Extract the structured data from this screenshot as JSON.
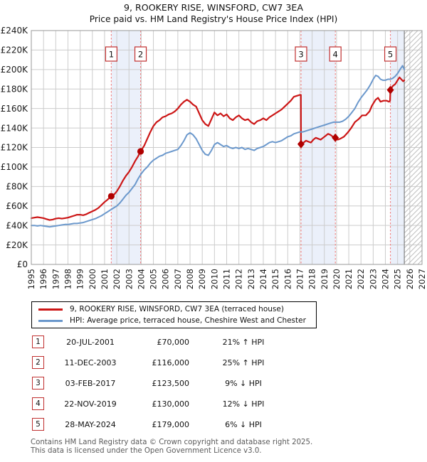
{
  "title": "9, ROOKERY RISE, WINSFORD, CW7 3EA",
  "subtitle": "Price paid vs. HM Land Registry's House Price Index (HPI)",
  "legend": {
    "items": [
      {
        "label": "9, ROOKERY RISE, WINSFORD, CW7 3EA (terraced house)",
        "color": "#cc1616"
      },
      {
        "label": "HPI: Average price, terraced house, Cheshire West and Chester",
        "color": "#6b98cc"
      }
    ]
  },
  "footer": {
    "line1": "Contains HM Land Registry data © Crown copyright and database right 2025.",
    "line2": "This data is licensed under the Open Government Licence v3.0."
  },
  "chart_data": {
    "type": "line",
    "title": "9, ROOKERY RISE, WINSFORD, CW7 3EA",
    "subtitle": "Price paid vs. HM Land Registry's House Price Index (HPI)",
    "unit": "GBP thousands",
    "x_axis": {
      "min": 1995,
      "max": 2027,
      "tick_years": [
        1995,
        1996,
        1997,
        1998,
        1999,
        2000,
        2001,
        2002,
        2003,
        2004,
        2005,
        2006,
        2007,
        2008,
        2009,
        2010,
        2011,
        2012,
        2013,
        2014,
        2015,
        2016,
        2017,
        2018,
        2019,
        2020,
        2021,
        2022,
        2023,
        2024,
        2025,
        2026,
        2027
      ]
    },
    "y_axis": {
      "min": 0,
      "max": 240000,
      "tick_step": 20000,
      "tick_labels": [
        "£0",
        "£20K",
        "£40K",
        "£60K",
        "£80K",
        "£100K",
        "£120K",
        "£140K",
        "£160K",
        "£180K",
        "£200K",
        "£220K",
        "£240K"
      ]
    },
    "colors": {
      "property": "#cc1616",
      "hpi": "#6b98cc",
      "marker": "#b00000",
      "dashed": "#f08080",
      "band": "#ebf0fa",
      "grid": "#cccccc",
      "border": "#9a9a9a",
      "hatch": "#bfbfbf",
      "hatch_edge": "#808080"
    },
    "ownership_bands": [
      [
        2001.55,
        2003.95
      ],
      [
        2017.09,
        2019.9
      ],
      [
        2024.41,
        2025.55
      ]
    ],
    "future_hatch_region": [
      2025.55,
      2027
    ],
    "sales": [
      {
        "num": 1,
        "date": "20-JUL-2001",
        "price": "£70,000",
        "hpi": "21% ↑ HPI",
        "year": 2001.55,
        "value_k": 70,
        "marker": "circle"
      },
      {
        "num": 2,
        "date": "11-DEC-2003",
        "price": "£116,000",
        "hpi": "25% ↑ HPI",
        "year": 2003.95,
        "value_k": 116,
        "marker": "circle"
      },
      {
        "num": 3,
        "date": "03-FEB-2017",
        "price": "£123,500",
        "hpi": "9% ↓ HPI",
        "year": 2017.09,
        "value_k": 123.5,
        "marker": "diamond"
      },
      {
        "num": 4,
        "date": "22-NOV-2019",
        "price": "£130,000",
        "hpi": "12% ↓ HPI",
        "year": 2019.9,
        "value_k": 130,
        "marker": "diamond"
      },
      {
        "num": 5,
        "date": "28-MAY-2024",
        "price": "£179,000",
        "hpi": "6% ↓ HPI",
        "year": 2024.41,
        "value_k": 179,
        "marker": "diamond"
      }
    ],
    "series": [
      {
        "name": "9, ROOKERY RISE, WINSFORD, CW7 3EA (terraced house)",
        "color": "#cc1616",
        "points": [
          [
            1995.0,
            47.5
          ],
          [
            1995.25,
            48
          ],
          [
            1995.5,
            48.5
          ],
          [
            1995.75,
            48
          ],
          [
            1996.0,
            47.5
          ],
          [
            1996.25,
            46.5
          ],
          [
            1996.5,
            45.5
          ],
          [
            1996.75,
            46
          ],
          [
            1997.0,
            47
          ],
          [
            1997.25,
            47.5
          ],
          [
            1997.5,
            47
          ],
          [
            1997.75,
            47.5
          ],
          [
            1998.0,
            48
          ],
          [
            1998.25,
            49
          ],
          [
            1998.5,
            50
          ],
          [
            1998.75,
            51
          ],
          [
            1999.0,
            51
          ],
          [
            1999.25,
            50.5
          ],
          [
            1999.5,
            51.5
          ],
          [
            1999.75,
            53
          ],
          [
            2000.0,
            54.5
          ],
          [
            2000.25,
            56
          ],
          [
            2000.5,
            58
          ],
          [
            2000.75,
            61
          ],
          [
            2001.0,
            64
          ],
          [
            2001.25,
            66.5
          ],
          [
            2001.55,
            70
          ],
          [
            2001.8,
            72
          ],
          [
            2002.0,
            75
          ],
          [
            2002.25,
            80
          ],
          [
            2002.5,
            86
          ],
          [
            2002.75,
            91
          ],
          [
            2003.0,
            95
          ],
          [
            2003.25,
            100
          ],
          [
            2003.5,
            106
          ],
          [
            2003.75,
            111
          ],
          [
            2003.95,
            116
          ],
          [
            2004.25,
            122
          ],
          [
            2004.5,
            129
          ],
          [
            2004.75,
            136
          ],
          [
            2005.0,
            142
          ],
          [
            2005.25,
            146
          ],
          [
            2005.5,
            148
          ],
          [
            2005.75,
            151
          ],
          [
            2006.0,
            152
          ],
          [
            2006.25,
            154
          ],
          [
            2006.5,
            155
          ],
          [
            2006.75,
            157
          ],
          [
            2007.0,
            160
          ],
          [
            2007.25,
            164
          ],
          [
            2007.5,
            167
          ],
          [
            2007.75,
            169
          ],
          [
            2008.0,
            167
          ],
          [
            2008.25,
            164
          ],
          [
            2008.5,
            162
          ],
          [
            2008.75,
            155
          ],
          [
            2009.0,
            148
          ],
          [
            2009.25,
            144
          ],
          [
            2009.5,
            142
          ],
          [
            2009.75,
            149
          ],
          [
            2010.0,
            156
          ],
          [
            2010.25,
            153
          ],
          [
            2010.5,
            155
          ],
          [
            2010.75,
            152
          ],
          [
            2011.0,
            154
          ],
          [
            2011.25,
            150
          ],
          [
            2011.5,
            148
          ],
          [
            2011.75,
            151
          ],
          [
            2012.0,
            153
          ],
          [
            2012.25,
            150
          ],
          [
            2012.5,
            148
          ],
          [
            2012.75,
            149
          ],
          [
            2013.0,
            146
          ],
          [
            2013.25,
            144
          ],
          [
            2013.5,
            147
          ],
          [
            2013.75,
            148
          ],
          [
            2014.0,
            150
          ],
          [
            2014.25,
            148
          ],
          [
            2014.5,
            151
          ],
          [
            2014.75,
            153
          ],
          [
            2015.0,
            155
          ],
          [
            2015.25,
            157
          ],
          [
            2015.5,
            159
          ],
          [
            2015.75,
            162
          ],
          [
            2016.0,
            165
          ],
          [
            2016.25,
            168
          ],
          [
            2016.5,
            172
          ],
          [
            2016.75,
            173
          ],
          [
            2017.0,
            174
          ],
          [
            2017.08,
            174
          ],
          [
            2017.09,
            123.5
          ],
          [
            2017.3,
            125
          ],
          [
            2017.5,
            127
          ],
          [
            2017.7,
            126
          ],
          [
            2017.9,
            125
          ],
          [
            2018.1,
            128
          ],
          [
            2018.3,
            130
          ],
          [
            2018.5,
            129
          ],
          [
            2018.7,
            128
          ],
          [
            2018.9,
            130
          ],
          [
            2019.1,
            132
          ],
          [
            2019.3,
            134
          ],
          [
            2019.5,
            133
          ],
          [
            2019.7,
            131
          ],
          [
            2019.9,
            130
          ],
          [
            2020.1,
            128
          ],
          [
            2020.3,
            129
          ],
          [
            2020.6,
            131
          ],
          [
            2020.9,
            135
          ],
          [
            2021.2,
            140
          ],
          [
            2021.5,
            146
          ],
          [
            2021.8,
            149
          ],
          [
            2022.1,
            153
          ],
          [
            2022.4,
            153
          ],
          [
            2022.7,
            157
          ],
          [
            2022.9,
            163
          ],
          [
            2023.2,
            169
          ],
          [
            2023.4,
            171
          ],
          [
            2023.6,
            167
          ],
          [
            2023.85,
            168
          ],
          [
            2024.1,
            168
          ],
          [
            2024.3,
            167
          ],
          [
            2024.38,
            168
          ],
          [
            2024.41,
            179
          ],
          [
            2024.6,
            183
          ],
          [
            2024.8,
            185
          ],
          [
            2025.0,
            189
          ],
          [
            2025.15,
            192
          ],
          [
            2025.3,
            190
          ],
          [
            2025.45,
            188
          ],
          [
            2025.55,
            189
          ]
        ]
      },
      {
        "name": "HPI: Average price, terraced house, Cheshire West and Chester",
        "color": "#6b98cc",
        "points": [
          [
            1995.0,
            40
          ],
          [
            1995.25,
            40
          ],
          [
            1995.5,
            39.5
          ],
          [
            1995.75,
            40
          ],
          [
            1996.0,
            39.5
          ],
          [
            1996.25,
            39
          ],
          [
            1996.5,
            38.5
          ],
          [
            1996.75,
            39
          ],
          [
            1997.0,
            39.5
          ],
          [
            1997.25,
            40
          ],
          [
            1997.5,
            40.5
          ],
          [
            1997.75,
            41
          ],
          [
            1998.0,
            41
          ],
          [
            1998.25,
            41.5
          ],
          [
            1998.5,
            42
          ],
          [
            1998.75,
            42
          ],
          [
            1999.0,
            42.5
          ],
          [
            1999.25,
            43
          ],
          [
            1999.5,
            44
          ],
          [
            1999.75,
            45
          ],
          [
            2000.0,
            46
          ],
          [
            2000.25,
            47
          ],
          [
            2000.5,
            48.5
          ],
          [
            2000.75,
            50
          ],
          [
            2001.0,
            52
          ],
          [
            2001.25,
            54
          ],
          [
            2001.5,
            56
          ],
          [
            2001.75,
            58
          ],
          [
            2002.0,
            60
          ],
          [
            2002.25,
            63
          ],
          [
            2002.5,
            67
          ],
          [
            2002.75,
            71
          ],
          [
            2003.0,
            74
          ],
          [
            2003.25,
            78
          ],
          [
            2003.5,
            82
          ],
          [
            2003.75,
            88
          ],
          [
            2004.0,
            93
          ],
          [
            2004.25,
            97
          ],
          [
            2004.5,
            100
          ],
          [
            2004.75,
            104
          ],
          [
            2005.0,
            107
          ],
          [
            2005.25,
            109
          ],
          [
            2005.5,
            111
          ],
          [
            2005.75,
            112
          ],
          [
            2006.0,
            114
          ],
          [
            2006.25,
            115
          ],
          [
            2006.5,
            116
          ],
          [
            2006.75,
            117
          ],
          [
            2007.0,
            118
          ],
          [
            2007.25,
            122
          ],
          [
            2007.5,
            127
          ],
          [
            2007.75,
            133
          ],
          [
            2008.0,
            135
          ],
          [
            2008.25,
            133
          ],
          [
            2008.5,
            129
          ],
          [
            2008.75,
            123
          ],
          [
            2009.0,
            117
          ],
          [
            2009.25,
            113
          ],
          [
            2009.5,
            112
          ],
          [
            2009.75,
            117
          ],
          [
            2010.0,
            123
          ],
          [
            2010.25,
            125
          ],
          [
            2010.5,
            123
          ],
          [
            2010.75,
            121
          ],
          [
            2011.0,
            122
          ],
          [
            2011.25,
            120
          ],
          [
            2011.5,
            119
          ],
          [
            2011.75,
            120
          ],
          [
            2012.0,
            119
          ],
          [
            2012.25,
            120
          ],
          [
            2012.5,
            118
          ],
          [
            2012.75,
            119
          ],
          [
            2013.0,
            118
          ],
          [
            2013.25,
            117
          ],
          [
            2013.5,
            119
          ],
          [
            2013.75,
            120
          ],
          [
            2014.0,
            121
          ],
          [
            2014.25,
            123
          ],
          [
            2014.5,
            125
          ],
          [
            2014.75,
            126
          ],
          [
            2015.0,
            125
          ],
          [
            2015.25,
            126
          ],
          [
            2015.5,
            127
          ],
          [
            2015.75,
            129
          ],
          [
            2016.0,
            131
          ],
          [
            2016.25,
            132
          ],
          [
            2016.5,
            134
          ],
          [
            2016.75,
            135
          ],
          [
            2017.0,
            136
          ],
          [
            2017.25,
            136
          ],
          [
            2017.5,
            137
          ],
          [
            2017.75,
            138
          ],
          [
            2018.0,
            139
          ],
          [
            2018.25,
            140
          ],
          [
            2018.5,
            141
          ],
          [
            2018.75,
            142
          ],
          [
            2019.0,
            143
          ],
          [
            2019.25,
            144
          ],
          [
            2019.5,
            145
          ],
          [
            2019.75,
            146
          ],
          [
            2020.0,
            146
          ],
          [
            2020.25,
            146
          ],
          [
            2020.5,
            147
          ],
          [
            2020.75,
            149
          ],
          [
            2021.0,
            152
          ],
          [
            2021.25,
            156
          ],
          [
            2021.5,
            160
          ],
          [
            2021.75,
            166
          ],
          [
            2022.0,
            171
          ],
          [
            2022.25,
            175
          ],
          [
            2022.5,
            179
          ],
          [
            2022.75,
            184
          ],
          [
            2023.0,
            190
          ],
          [
            2023.2,
            194
          ],
          [
            2023.4,
            193
          ],
          [
            2023.6,
            190
          ],
          [
            2023.8,
            189
          ],
          [
            2024.0,
            189
          ],
          [
            2024.2,
            190
          ],
          [
            2024.4,
            190
          ],
          [
            2024.6,
            191
          ],
          [
            2024.8,
            193
          ],
          [
            2025.0,
            196
          ],
          [
            2025.2,
            200
          ],
          [
            2025.4,
            204
          ],
          [
            2025.55,
            200
          ]
        ]
      }
    ]
  }
}
